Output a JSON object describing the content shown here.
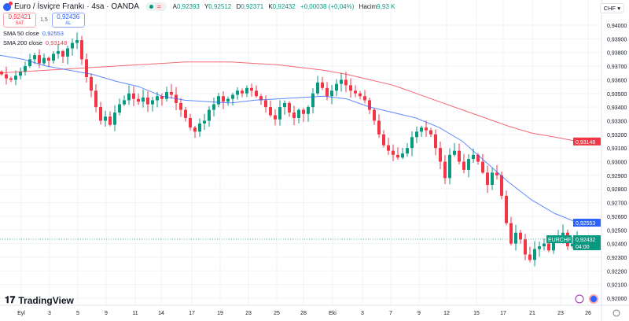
{
  "header": {
    "title": "Euro / İsviçre Frankı · 4sa · OANDA",
    "ohlc": [
      {
        "label": "A",
        "value": "0,92393"
      },
      {
        "label": "Y",
        "value": "0,92512"
      },
      {
        "label": "D",
        "value": "0,92371"
      },
      {
        "label": "K",
        "value": "0,92432"
      }
    ],
    "change": "+0,00038 (+0,04%)",
    "volume_label": "Hacim",
    "volume_value": "9,93 K"
  },
  "trade": {
    "sell_price": "0,92421",
    "sell_label": "SAT",
    "spread": "1,5",
    "buy_price": "0,92436",
    "buy_label": "AL"
  },
  "indicators": {
    "sma50_label": "SMA 50 close",
    "sma50_value": "0,92553",
    "sma200_label": "SMA 200 close",
    "sma200_value": "0,93148"
  },
  "currency": "CHF",
  "brand": "TradingView",
  "colors": {
    "up": "#089981",
    "down": "#f23645",
    "sma50": "#2962ff",
    "sma200": "#f23645",
    "grid": "#f0f3fa"
  },
  "chart_data": {
    "type": "candlestick",
    "symbol": "EURCHF",
    "timeframe": "4h",
    "ylim": [
      0.9195,
      0.9405
    ],
    "y_ticks": [
      "0,94000",
      "0,93900",
      "0,93800",
      "0,93700",
      "0,93600",
      "0,93500",
      "0,93400",
      "0,93300",
      "0,93200",
      "0,93100",
      "0,93000",
      "0,92900",
      "0,92800",
      "0,92700",
      "0,92600",
      "0,92500",
      "0,92400",
      "0,92300",
      "0,92200",
      "0,92100",
      "0,92000"
    ],
    "x_ticks": [
      "Eyl",
      "3",
      "5",
      "9",
      "11",
      "14",
      "17",
      "19",
      "23",
      "25",
      "28",
      "Eki",
      "3",
      "7",
      "9",
      "12",
      "15",
      "17",
      "21",
      "23",
      "26"
    ],
    "closes": [
      0.9364,
      0.9361,
      0.936,
      0.9363,
      0.9366,
      0.937,
      0.9375,
      0.9378,
      0.9372,
      0.9376,
      0.9374,
      0.9379,
      0.9381,
      0.9377,
      0.9383,
      0.9387,
      0.9389,
      0.9375,
      0.9362,
      0.9352,
      0.934,
      0.933,
      0.9333,
      0.9327,
      0.9336,
      0.9342,
      0.9345,
      0.935,
      0.9346,
      0.9344,
      0.9347,
      0.9342,
      0.9345,
      0.9348,
      0.9346,
      0.9351,
      0.9349,
      0.9343,
      0.9338,
      0.9332,
      0.9325,
      0.9322,
      0.9328,
      0.933,
      0.9338,
      0.9342,
      0.9348,
      0.9344,
      0.9346,
      0.9349,
      0.9352,
      0.935,
      0.9354,
      0.9352,
      0.9348,
      0.9345,
      0.934,
      0.9334,
      0.9331,
      0.934,
      0.9343,
      0.9336,
      0.9332,
      0.9338,
      0.9335,
      0.934,
      0.935,
      0.9358,
      0.9354,
      0.9348,
      0.9352,
      0.9357,
      0.936,
      0.9356,
      0.9352,
      0.935,
      0.9348,
      0.9345,
      0.9338,
      0.933,
      0.932,
      0.9312,
      0.9308,
      0.9305,
      0.9303,
      0.9306,
      0.931,
      0.9318,
      0.9322,
      0.9325,
      0.9323,
      0.932,
      0.931,
      0.93,
      0.9288,
      0.9305,
      0.9308,
      0.93,
      0.9294,
      0.9302,
      0.9305,
      0.93,
      0.9292,
      0.9283,
      0.9292,
      0.929,
      0.9275,
      0.9255,
      0.924,
      0.9248,
      0.9243,
      0.9232,
      0.9228,
      0.9236,
      0.9238,
      0.924,
      0.9235,
      0.9242,
      0.9246,
      0.9248,
      0.9238,
      0.924,
      0.92432
    ],
    "sma50": [
      0.9378,
      0.9375,
      0.937,
      0.9367,
      0.9364,
      0.9359,
      0.9355,
      0.9348,
      0.9345,
      0.9344,
      0.9343,
      0.9345,
      0.9346,
      0.9347,
      0.9348,
      0.9346,
      0.934,
      0.9336,
      0.9332,
      0.9325,
      0.9315,
      0.93,
      0.9285,
      0.9272,
      0.9262,
      0.92553
    ],
    "sma200": [
      0.9365,
      0.9366,
      0.9367,
      0.9368,
      0.9369,
      0.937,
      0.9371,
      0.9372,
      0.9373,
      0.9373,
      0.9373,
      0.9372,
      0.9371,
      0.9369,
      0.9367,
      0.9364,
      0.936,
      0.9356,
      0.935,
      0.9344,
      0.9338,
      0.9332,
      0.9326,
      0.9321,
      0.9318,
      0.93148
    ],
    "last_price": "0,92432",
    "last_label": "EURCHF",
    "countdown": "04:00"
  }
}
